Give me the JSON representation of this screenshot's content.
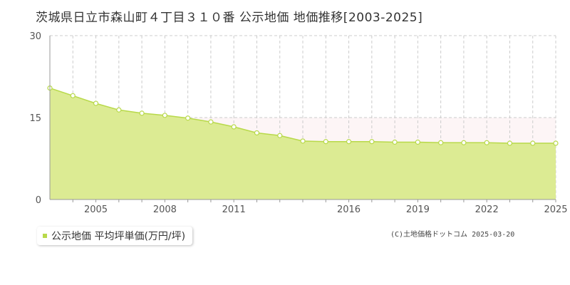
{
  "chart_data": {
    "type": "area",
    "title": "茨城県日立市森山町４丁目３１０番 公示地価 地価推移[2003-2025]",
    "x": [
      2003,
      2004,
      2005,
      2006,
      2007,
      2008,
      2009,
      2010,
      2011,
      2012,
      2013,
      2014,
      2015,
      2016,
      2017,
      2018,
      2019,
      2020,
      2021,
      2022,
      2023,
      2024,
      2025
    ],
    "series": [
      {
        "name": "公示地価 平均坪単価(万円/坪)",
        "values": [
          20.4,
          19.0,
          17.6,
          16.4,
          15.8,
          15.4,
          14.9,
          14.2,
          13.3,
          12.2,
          11.7,
          10.7,
          10.6,
          10.6,
          10.6,
          10.5,
          10.5,
          10.4,
          10.4,
          10.4,
          10.3,
          10.3,
          10.3
        ]
      }
    ],
    "xticks": [
      2005,
      2008,
      2011,
      2016,
      2019,
      2022,
      2025
    ],
    "yticks": [
      0,
      15,
      30
    ],
    "ylim": [
      0,
      30
    ],
    "xlim": [
      2003,
      2025
    ],
    "grid": true,
    "legend": "bottom-left",
    "colors": {
      "fill": "#dceb93",
      "line": "#b8d94a",
      "highlight_band": "#fdf5f6"
    }
  },
  "legend_label": "公示地価 平均坪単価(万円/坪)",
  "copyright": "(C)土地価格ドットコム 2025-03-20"
}
